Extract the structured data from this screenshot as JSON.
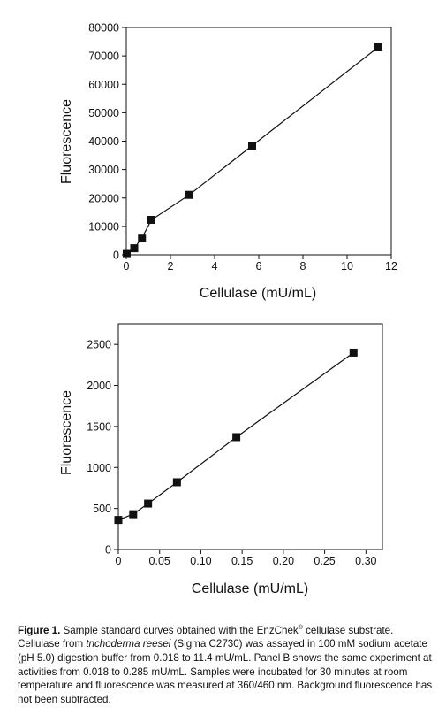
{
  "chart_data": [
    {
      "type": "line",
      "xlabel": "Cellulase (mU/mL)",
      "ylabel": "Fluorescence",
      "xlim": [
        0,
        12
      ],
      "ylim": [
        0,
        80000
      ],
      "xticks": [
        "0",
        "2",
        "4",
        "6",
        "8",
        "10",
        "12"
      ],
      "yticks": [
        "0",
        "10000",
        "20000",
        "30000",
        "40000",
        "50000",
        "60000",
        "70000",
        "80000"
      ],
      "series": [
        {
          "x": [
            0.018,
            0.36,
            0.71,
            1.14,
            2.85,
            5.7,
            11.4
          ],
          "y": [
            600,
            2300,
            6000,
            12300,
            21100,
            38400,
            73000
          ],
          "marker": "square",
          "color": "#111111"
        }
      ],
      "grid": false
    },
    {
      "type": "line",
      "xlabel": "Cellulase (mU/mL)",
      "ylabel": "Fluorescence",
      "xlim": [
        0,
        0.32
      ],
      "ylim": [
        0,
        2750
      ],
      "xticks": [
        "0",
        "0.05",
        "0.10",
        "0.15",
        "0.20",
        "0.25",
        "0.30"
      ],
      "yticks": [
        "0",
        "500",
        "1000",
        "1500",
        "2000",
        "2500"
      ],
      "series": [
        {
          "x": [
            0,
            0.018,
            0.036,
            0.071,
            0.143,
            0.285
          ],
          "y": [
            360,
            430,
            560,
            820,
            1370,
            2400
          ],
          "marker": "square",
          "color": "#111111"
        }
      ],
      "grid": false
    }
  ],
  "caption": {
    "label": "Figure 1.",
    "part1": " Sample standard curves obtained with the EnzChek",
    "reg": "®",
    "part2": " cellulase substrate. Cellulase from ",
    "species": "trichoderma reesei",
    "part3": " (Sigma C2730) was assayed in 100 mM sodium acetate (pH 5.0) digestion buffer from 0.018 to 11.4 mU/mL. Panel B shows the same experiment at activities from 0.018 to 0.285 mU/mL. Samples were incubated for 30 minutes at room temperature and fluorescence was measured at 360/460 nm. Background fluorescence has not been subtracted."
  }
}
